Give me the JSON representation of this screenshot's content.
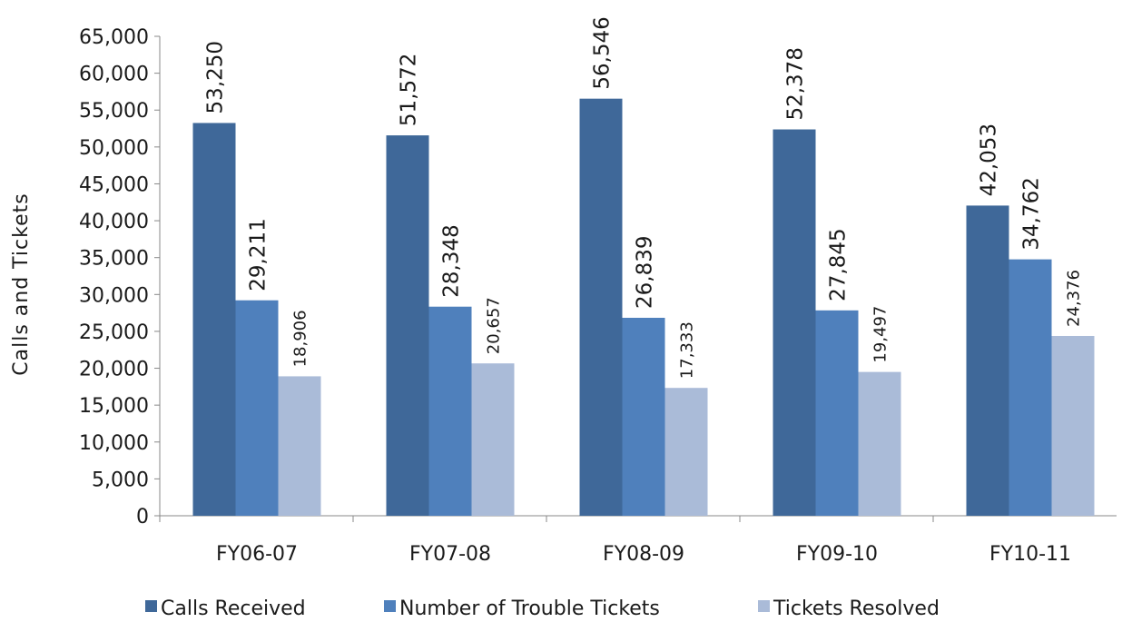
{
  "chart_data": {
    "type": "bar",
    "title": "",
    "xlabel": "",
    "ylabel": "Calls  and  Tickets",
    "ylim": [
      0,
      65000
    ],
    "ytick_step": 5000,
    "ytick_labels": [
      "0",
      "5,000",
      "10,000",
      "15,000",
      "20,000",
      "25,000",
      "30,000",
      "35,000",
      "40,000",
      "45,000",
      "50,000",
      "55,000",
      "60,000",
      "65,000"
    ],
    "grid": false,
    "legend_position": "bottom",
    "categories": [
      "FY06-07",
      "FY07-08",
      "FY08-09",
      "FY09-10",
      "FY10-11"
    ],
    "series": [
      {
        "name": "Calls Received",
        "color": "#3f6899",
        "values": [
          53250,
          51572,
          56546,
          52378,
          42053
        ],
        "labels": [
          "53,250",
          "51,572",
          "56,546",
          "52,378",
          "42,053"
        ]
      },
      {
        "name": "Number of Trouble Tickets",
        "color": "#4f80bc",
        "values": [
          29211,
          28348,
          26839,
          27845,
          34762
        ],
        "labels": [
          "29,211",
          "28,348",
          "26,839",
          "27,845",
          "34,762"
        ]
      },
      {
        "name": "Tickets Resolved",
        "color": "#aabbd8",
        "values": [
          18906,
          20657,
          17333,
          19497,
          24376
        ],
        "labels": [
          "18,906",
          "20,657",
          "17,333",
          "19,497",
          "24,376"
        ]
      }
    ]
  }
}
